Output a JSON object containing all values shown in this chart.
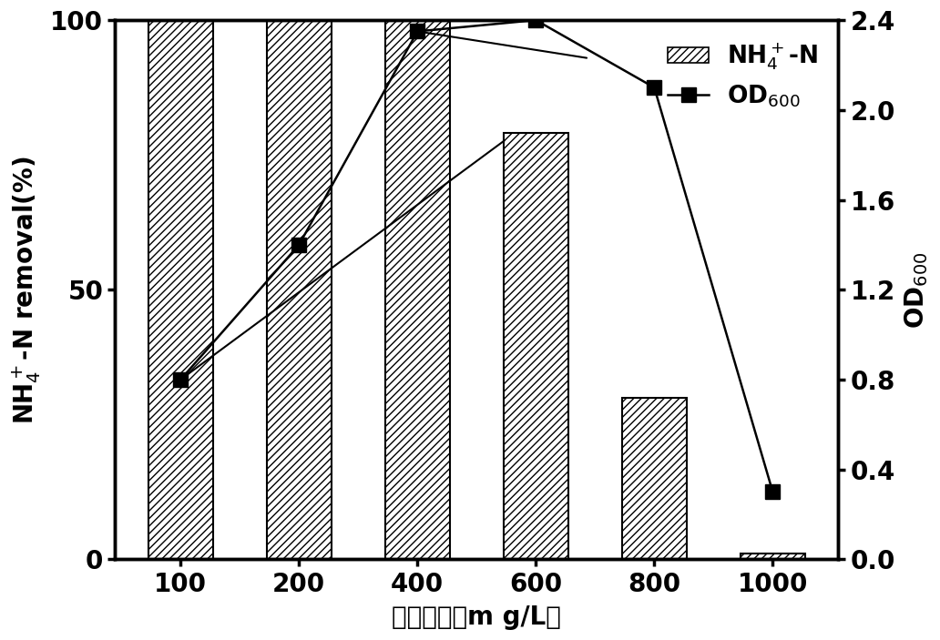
{
  "categories": [
    100,
    200,
    400,
    600,
    800,
    1000
  ],
  "bar_values": [
    100,
    100,
    100,
    79,
    30,
    1
  ],
  "od_values": [
    0.8,
    1.4,
    2.35,
    2.4,
    2.1,
    0.3
  ],
  "bar_color": "white",
  "od_color": "#000000",
  "bar_hatch": "////",
  "xlabel": "氨氮浓度（m g/L）",
  "ylabel_left": "NH$_4^+$-N removal(%)",
  "ylabel_right": "OD$_{600}$",
  "ylim_left": [
    0,
    100
  ],
  "ylim_right": [
    0.0,
    2.4
  ],
  "yticks_left": [
    0,
    50,
    100
  ],
  "yticks_right": [
    0.0,
    0.4,
    0.8,
    1.2,
    1.6,
    2.0,
    2.4
  ],
  "legend_nh4_label": "NH$_4^+$-N",
  "legend_od_label": "OD$_{600}$",
  "bar_width": 0.55,
  "background_color": "#ffffff",
  "font_size": 20
}
